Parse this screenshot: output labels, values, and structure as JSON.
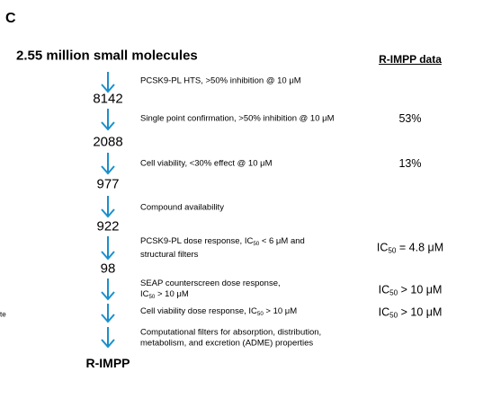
{
  "panel_label": "C",
  "header": {
    "title": "2.55 million small molecules",
    "data_heading": "R-IMPP data"
  },
  "margin_fragment": "te",
  "steps": [
    {
      "criterion": [
        [
          "PCSK9-PL HTS, >50% inhibition @ 10 μM"
        ]
      ],
      "count": "8142"
    },
    {
      "criterion": [
        [
          "Single point confirmation, >50% inhibition @ 10 μM"
        ]
      ],
      "r_impp_data": [
        "53%"
      ],
      "count": "2088"
    },
    {
      "criterion": [
        [
          "Cell viability, <30% effect @ 10 μM"
        ]
      ],
      "r_impp_data": [
        "13%"
      ],
      "count": "977"
    },
    {
      "criterion": [
        [
          "Compound availability"
        ]
      ],
      "count": "922"
    },
    {
      "criterion": [
        [
          "PCSK9-PL dose response, IC",
          {
            "sub": "50"
          },
          " < 6 μM and"
        ],
        [
          "structural filters"
        ]
      ],
      "r_impp_data": [
        "IC",
        {
          "sub": "50"
        },
        " = 4.8 μM"
      ],
      "count": "98"
    },
    {
      "criterion": [
        [
          "SEAP counterscreen dose response,"
        ],
        [
          "IC",
          {
            "sub": "50"
          },
          " > 10 μM"
        ]
      ],
      "r_impp_data": [
        "IC",
        {
          "sub": "50"
        },
        " > 10 μM"
      ]
    },
    {
      "criterion": [
        [
          "Cell viability dose response, IC",
          {
            "sub": "50"
          },
          " > 10 μM"
        ]
      ],
      "r_impp_data": [
        "IC",
        {
          "sub": "50"
        },
        " > 10 μM"
      ]
    },
    {
      "criterion": [
        [
          "Computational filters for absorption, distribution,"
        ],
        [
          "metabolism, and excretion (ADME) properties"
        ]
      ],
      "count": "R-IMPP"
    }
  ]
}
